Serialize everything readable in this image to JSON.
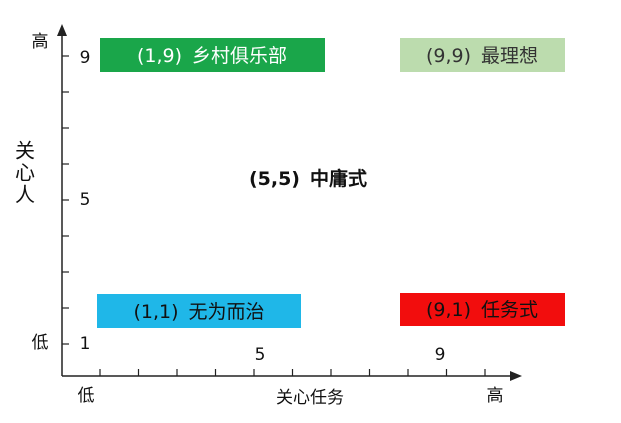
{
  "y_axis": {
    "label": "关心人",
    "high": "高",
    "low": "低",
    "ticks": [
      "9",
      "5",
      "1"
    ]
  },
  "x_axis": {
    "label": "关心任务",
    "high": "高",
    "low": "低",
    "ticks": [
      "5",
      "9"
    ]
  },
  "styles": [
    {
      "coords": "(1,9)",
      "name": "乡村俱乐部"
    },
    {
      "coords": "(9,9)",
      "name": "最理想"
    },
    {
      "coords": "(5,5)",
      "name": "中庸式"
    },
    {
      "coords": "(1,1)",
      "name": "无为而治"
    },
    {
      "coords": "(9,1)",
      "name": "任务式"
    }
  ]
}
